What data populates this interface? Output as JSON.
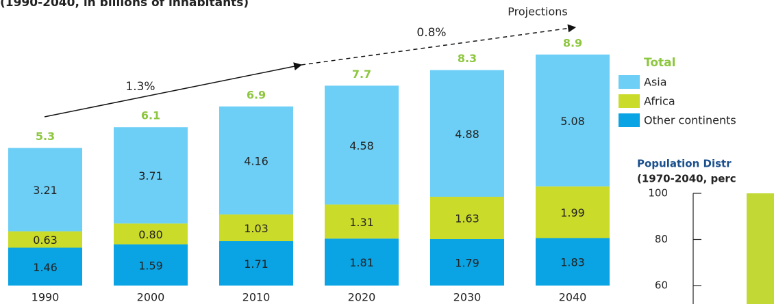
{
  "chart_data": [
    {
      "type": "stacked-bar",
      "title": "(1990-2040, in billions of inhabitants)",
      "categories": [
        "1990",
        "2000",
        "2010",
        "2020",
        "2030",
        "2040"
      ],
      "series": [
        {
          "name": "Other continents",
          "color": "#0aa3e3",
          "values": [
            1.46,
            1.59,
            1.71,
            1.81,
            1.79,
            1.83
          ]
        },
        {
          "name": "Africa",
          "color": "#cbdb2a",
          "values": [
            0.63,
            0.8,
            1.03,
            1.31,
            1.63,
            1.99
          ],
          "value_labels": [
            "0.63",
            "0.80",
            "1.03",
            "1.31",
            "1.63",
            "1.99"
          ]
        },
        {
          "name": "Asia",
          "color": "#6dcff6",
          "values": [
            3.21,
            3.71,
            4.16,
            4.58,
            4.88,
            5.08
          ]
        }
      ],
      "totals_name": "Total",
      "totals_color": "#8dc63f",
      "totals": [
        5.3,
        6.1,
        6.9,
        7.7,
        8.3,
        8.9
      ],
      "annotations": [
        "1.3%",
        "0.8%",
        "Projections"
      ]
    },
    {
      "type": "bar",
      "title": "Population Distr",
      "subtitle": "(1970-2040, perc",
      "values": [
        100
      ],
      "color": "#c2d834",
      "ylim": [
        52,
        100
      ],
      "yticks": [
        60,
        80,
        100
      ]
    }
  ]
}
